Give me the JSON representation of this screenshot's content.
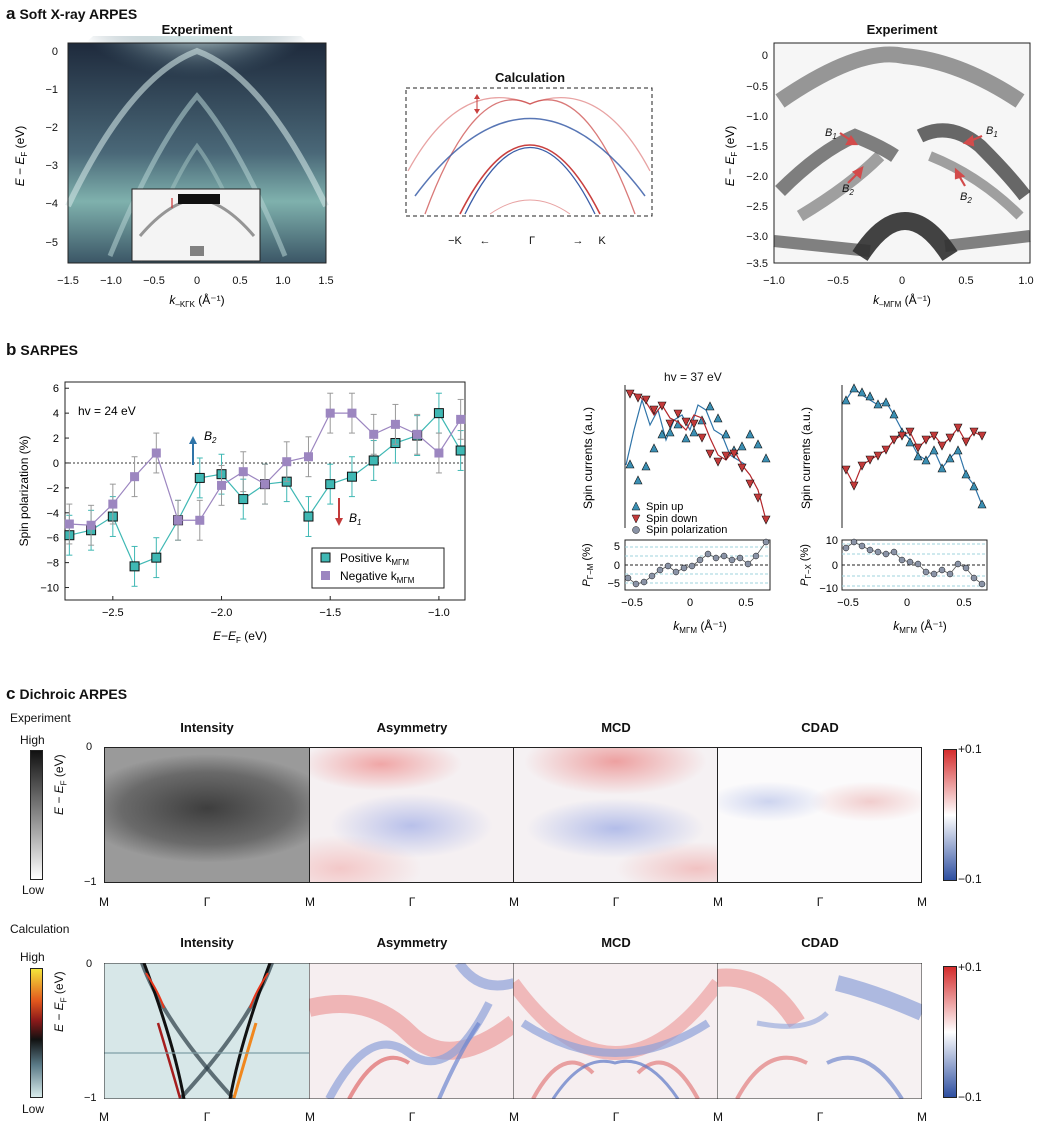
{
  "panel_a": {
    "label": "a",
    "title": "Soft X-ray ARPES",
    "exp_left_title": "Experiment",
    "calc_title": "Calculation",
    "exp_right_title": "Experiment",
    "left_ylabel": "E − E",
    "left_ylabel_sub": "F",
    "left_yunit": " (eV)",
    "left_xlabel": "k",
    "left_xlabel_sub": "–KΓK",
    "left_xunit": " (Å⁻¹)",
    "left_yticks": [
      "0",
      "−1",
      "−2",
      "−3",
      "−4",
      "−5"
    ],
    "left_xticks": [
      "−1.5",
      "−1.0",
      "−0.5",
      "0",
      "0.5",
      "1.0",
      "1.5"
    ],
    "calc_xlabels": [
      "−K",
      "←",
      "Γ",
      "→",
      "K"
    ],
    "right_ylabel": "E − E",
    "right_ylabel_sub": "F",
    "right_yunit": " (eV)",
    "right_xlabel": "k",
    "right_xlabel_sub": "–MΓM",
    "right_xunit": " (Å⁻¹)",
    "right_yticks": [
      "0",
      "−0.5",
      "−1.0",
      "−1.5",
      "−2.0",
      "−2.5",
      "−3.0",
      "−3.5"
    ],
    "right_xticks": [
      "−1.0",
      "−0.5",
      "0",
      "0.5",
      "1.0"
    ],
    "annotations": [
      "B",
      "1",
      "B",
      "2",
      "B",
      "1",
      "B",
      "2"
    ]
  },
  "panel_b": {
    "label": "b",
    "title": "SARPES",
    "hv_left": "hv = 24 eV",
    "hv_right": "hv = 37 eV",
    "ylabel": "Spin polarization (%)",
    "xlabel": "E−E",
    "xlabel_sub": "F",
    "xunit": " (eV)",
    "b2": "B",
    "b2sub": "2",
    "b1": "B",
    "b1sub": "1",
    "legend_pos": "Positive k",
    "legend_neg": "Negative k",
    "legend_sub": "MΓM",
    "spin_ylabel": "Spin currents (a.u.)",
    "pol_label_1": "P",
    "pol_sub_1": "Γ−M",
    "pol_label_2": "P",
    "pol_sub_2": "Γ−X",
    "pol_unit": " (%)",
    "kx_label": "k",
    "kx_sub": "MΓM",
    "kx_unit": " (Å⁻¹)",
    "legend_up": "Spin up",
    "legend_down": "Spin down",
    "legend_pol": "Spin polarization",
    "small_xticks": [
      "−0.5",
      "0",
      "0.5"
    ],
    "pol1_ticks": [
      "5",
      "0",
      "−5"
    ],
    "pol2_ticks": [
      "10",
      "0",
      "−10"
    ]
  },
  "panel_c": {
    "label": "c",
    "title": "Dichroic ARPES",
    "row1_label": "Experiment",
    "row2_label": "Calculation",
    "high": "High",
    "low": "Low",
    "col_titles": [
      "Intensity",
      "Asymmetry",
      "MCD",
      "CDAD"
    ],
    "ylabel": "E − E",
    "ylabel_sub": "F",
    "yunit": " (eV)",
    "yticks": [
      "0",
      "−1"
    ],
    "xticks": [
      "M",
      "Γ",
      "M",
      "Γ",
      "M",
      "Γ",
      "M",
      "Γ",
      "M"
    ],
    "cbar_top": "+0.1",
    "cbar_bottom": "−0.1",
    "colors": {
      "red": "#d73c3c",
      "blue": "#3b5ea8",
      "teal": "#3fb8b4",
      "purple": "#9c86c0",
      "darkred": "#b3262b",
      "steelblue": "#2f74a8"
    }
  },
  "chart_data": [
    {
      "type": "line",
      "xlabel": "E−EF (eV)",
      "ylabel": "Spin polarization (%)",
      "xlim": [
        -2.72,
        -0.88
      ],
      "ylim": [
        -11,
        6.5
      ],
      "series": [
        {
          "name": "Positive kMΓM",
          "x": [
            -2.7,
            -2.6,
            -2.5,
            -2.4,
            -2.3,
            -2.2,
            -2.1,
            -2.0,
            -1.9,
            -1.8,
            -1.7,
            -1.6,
            -1.5,
            -1.4,
            -1.3,
            -1.2,
            -1.1,
            -1.0,
            -0.9
          ],
          "values": [
            -5.8,
            -5.4,
            -4.3,
            -8.3,
            -7.6,
            -4.6,
            -1.2,
            -0.9,
            -2.9,
            -1.7,
            -1.5,
            -4.3,
            -1.7,
            -1.1,
            0.2,
            1.6,
            2.2,
            4.0,
            1.0
          ]
        },
        {
          "name": "Negative kMΓM",
          "x": [
            -2.7,
            -2.6,
            -2.5,
            -2.4,
            -2.3,
            -2.2,
            -2.1,
            -2.0,
            -1.9,
            -1.8,
            -1.7,
            -1.6,
            -1.5,
            -1.4,
            -1.3,
            -1.2,
            -1.1,
            -1.0,
            -0.9
          ],
          "values": [
            -4.9,
            -5.0,
            -3.3,
            -1.1,
            0.8,
            -4.6,
            -4.6,
            -1.8,
            -0.7,
            -1.7,
            0.1,
            0.5,
            4.0,
            4.0,
            2.3,
            3.1,
            2.3,
            0.8,
            3.5
          ]
        }
      ]
    }
  ]
}
